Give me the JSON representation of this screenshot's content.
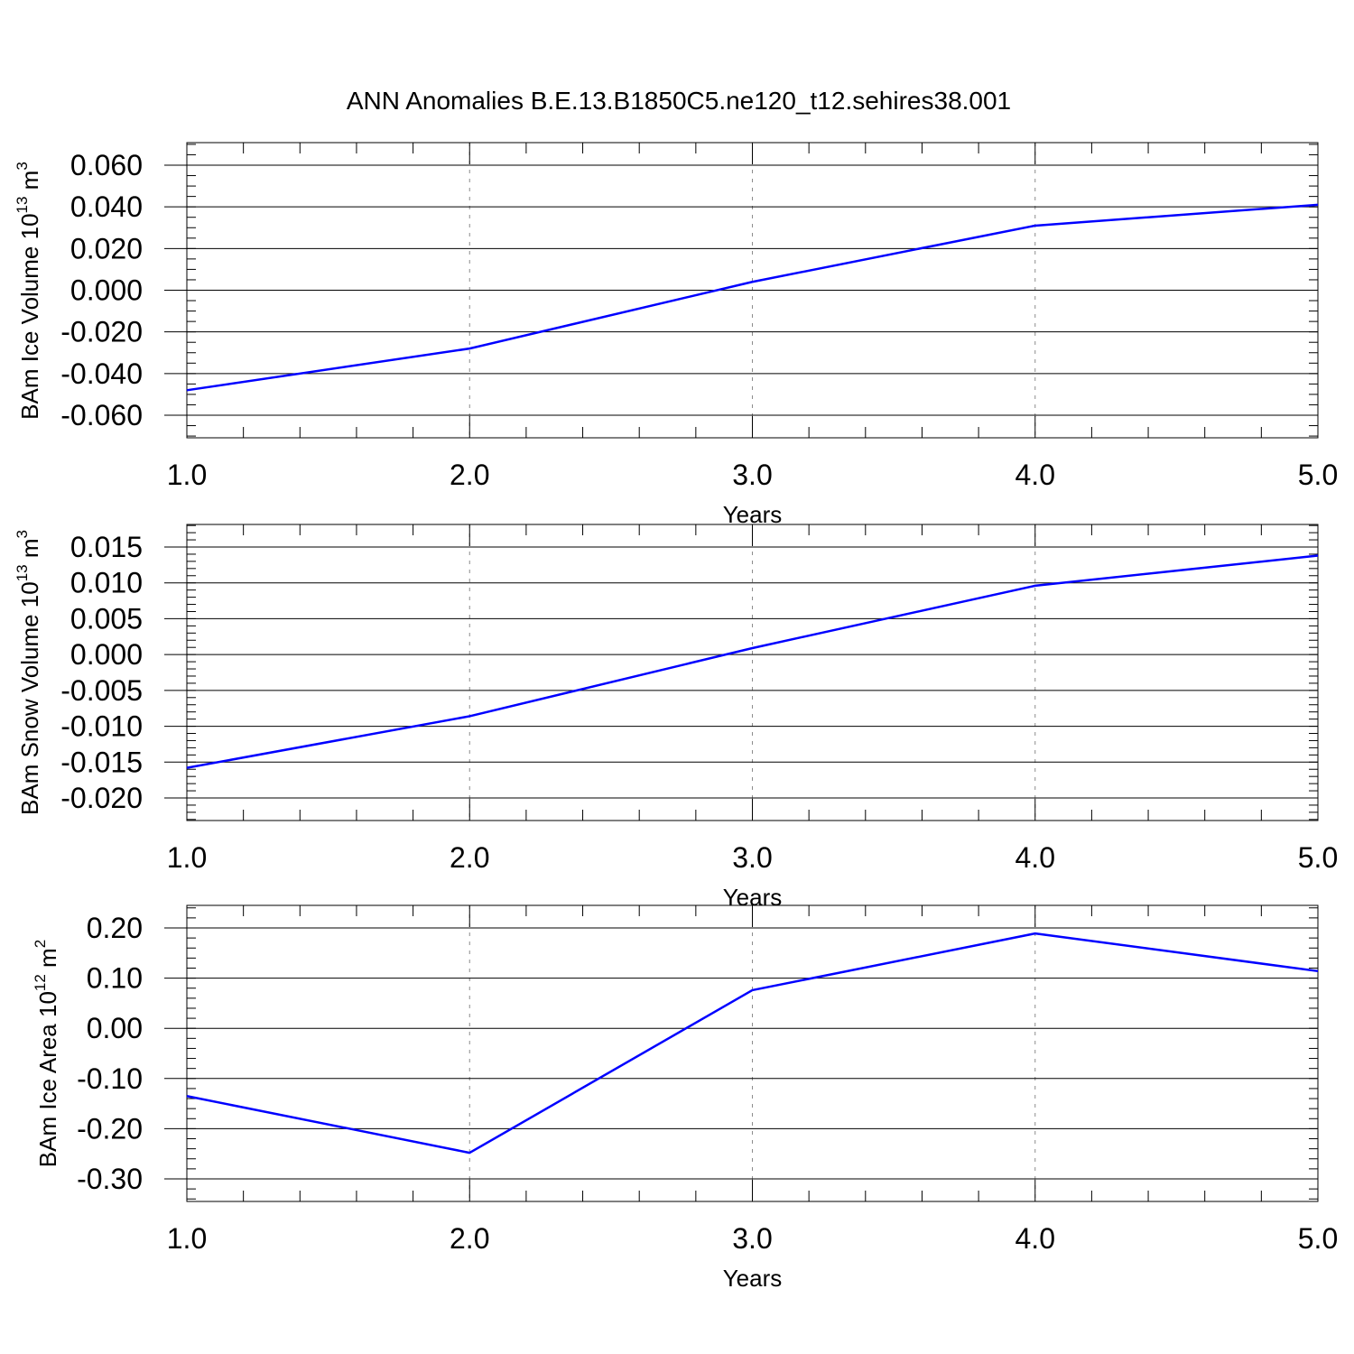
{
  "chart_data": {
    "title": "ANN Anomalies B.E.13.B1850C5.ne120_t12.sehires38.001",
    "line_color": "#0000ff",
    "panels": [
      {
        "type": "line",
        "ylabel_main": "BAm Ice Volume 10",
        "ylabel_exp": "13",
        "ylabel_unit": " m",
        "ylabel_unit_exp": "3",
        "xlabel": "Years",
        "xlim": [
          1.0,
          5.0
        ],
        "ylim": [
          -0.06,
          0.06
        ],
        "x_ticks": [
          "1.0",
          "2.0",
          "3.0",
          "4.0",
          "5.0"
        ],
        "y_ticks": [
          "0.060",
          "0.040",
          "0.020",
          "0.000",
          "-0.020",
          "-0.040",
          "-0.060"
        ],
        "y_tick_values": [
          0.06,
          0.04,
          0.02,
          0.0,
          -0.02,
          -0.04,
          -0.06
        ],
        "y_minor_step": 0.005,
        "grid": "vertical dashed at x ticks",
        "x": [
          1.0,
          2.0,
          3.0,
          4.0,
          5.0
        ],
        "values": [
          -0.048,
          -0.028,
          0.004,
          0.031,
          0.041
        ]
      },
      {
        "type": "line",
        "ylabel_main": "BAm Snow Volume 10",
        "ylabel_exp": "13",
        "ylabel_unit": " m",
        "ylabel_unit_exp": "3",
        "xlabel": "Years",
        "xlim": [
          1.0,
          5.0
        ],
        "ylim": [
          -0.02,
          0.015
        ],
        "x_ticks": [
          "1.0",
          "2.0",
          "3.0",
          "4.0",
          "5.0"
        ],
        "y_ticks": [
          "0.015",
          "0.010",
          "0.005",
          "0.000",
          "-0.005",
          "-0.010",
          "-0.015",
          "-0.020"
        ],
        "y_tick_values": [
          0.015,
          0.01,
          0.005,
          0.0,
          -0.005,
          -0.01,
          -0.015,
          -0.02
        ],
        "y_minor_step": 0.001,
        "grid": "vertical dashed at x ticks",
        "x": [
          1.0,
          2.0,
          3.0,
          4.0,
          5.0
        ],
        "values": [
          -0.0158,
          -0.0086,
          0.0009,
          0.0096,
          0.0138
        ]
      },
      {
        "type": "line",
        "ylabel_main": "BAm Ice Area 10",
        "ylabel_exp": "12",
        "ylabel_unit": " m",
        "ylabel_unit_exp": "2",
        "xlabel": "Years",
        "xlim": [
          1.0,
          5.0
        ],
        "ylim": [
          -0.3,
          0.2
        ],
        "x_ticks": [
          "1.0",
          "2.0",
          "3.0",
          "4.0",
          "5.0"
        ],
        "y_ticks": [
          "0.20",
          "0.10",
          "0.00",
          "-0.10",
          "-0.20",
          "-0.30"
        ],
        "y_tick_values": [
          0.2,
          0.1,
          0.0,
          -0.1,
          -0.2,
          -0.3
        ],
        "y_minor_step": 0.02,
        "grid": "vertical dashed at x ticks",
        "x": [
          1.0,
          2.0,
          3.0,
          4.0,
          5.0
        ],
        "values": [
          -0.135,
          -0.248,
          0.076,
          0.189,
          0.114
        ]
      }
    ]
  }
}
